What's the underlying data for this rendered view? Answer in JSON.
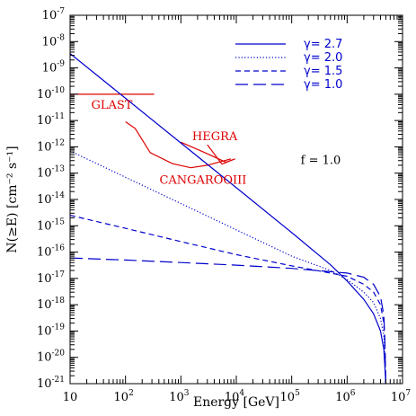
{
  "chart_data": {
    "type": "line",
    "x_scale": "log",
    "y_scale": "log",
    "xlim": [
      10,
      10000000
    ],
    "ylim": [
      1e-21,
      1e-07
    ],
    "xlabel": "Energy [GeV]",
    "ylabel": "N(≥E) [cm⁻² s⁻¹]",
    "x_ticks": [
      {
        "value": 10,
        "base": "10",
        "exp": ""
      },
      {
        "value": 100,
        "base": "10",
        "exp": "2"
      },
      {
        "value": 1000,
        "base": "10",
        "exp": "3"
      },
      {
        "value": 10000,
        "base": "10",
        "exp": "4"
      },
      {
        "value": 100000,
        "base": "10",
        "exp": "5"
      },
      {
        "value": 1000000,
        "base": "10",
        "exp": "6"
      },
      {
        "value": 10000000,
        "base": "10",
        "exp": "7"
      }
    ],
    "y_ticks": [
      {
        "value": 1e-07,
        "base": "10",
        "exp": "-7"
      },
      {
        "value": 1e-08,
        "base": "10",
        "exp": "-8"
      },
      {
        "value": 1e-09,
        "base": "10",
        "exp": "-9"
      },
      {
        "value": 1e-10,
        "base": "10",
        "exp": "-10"
      },
      {
        "value": 1e-11,
        "base": "10",
        "exp": "-11"
      },
      {
        "value": 1e-12,
        "base": "10",
        "exp": "-12"
      },
      {
        "value": 1e-13,
        "base": "10",
        "exp": "-13"
      },
      {
        "value": 1e-14,
        "base": "10",
        "exp": "-14"
      },
      {
        "value": 1e-15,
        "base": "10",
        "exp": "-15"
      },
      {
        "value": 1e-16,
        "base": "10",
        "exp": "-16"
      },
      {
        "value": 1e-17,
        "base": "10",
        "exp": "-17"
      },
      {
        "value": 1e-18,
        "base": "10",
        "exp": "-18"
      },
      {
        "value": 1e-19,
        "base": "10",
        "exp": "-19"
      },
      {
        "value": 1e-20,
        "base": "10",
        "exp": "-20"
      },
      {
        "value": 1e-21,
        "base": "10",
        "exp": "-21"
      }
    ],
    "series": [
      {
        "name": "γ= 2.7",
        "color": "#0000cc",
        "dash": "solid",
        "x": [
          10,
          100,
          1000,
          10000,
          100000,
          500000,
          1000000,
          2000000,
          3000000,
          4000000,
          4600000,
          4800000,
          4900000,
          5000000
        ],
        "y": [
          3.5e-09,
          7e-11,
          1.4e-12,
          2.8e-14,
          5.5e-16,
          3.3e-17,
          8e-18,
          1.6e-18,
          4.5e-19,
          1e-19,
          2e-20,
          5e-21,
          2e-21,
          1e-21
        ]
      },
      {
        "name": "γ= 2.0",
        "color": "#0000cc",
        "dash": "dotted",
        "x": [
          10,
          100,
          1000,
          10000,
          100000,
          500000,
          1000000,
          2000000,
          3000000,
          4000000,
          4600000,
          4800000,
          4900000,
          5000000
        ],
        "y": [
          7e-13,
          7e-14,
          7e-15,
          7e-16,
          7e-17,
          2e-17,
          9e-18,
          3e-18,
          1.2e-18,
          3e-19,
          7e-20,
          1e-20,
          3e-21,
          1e-21
        ]
      },
      {
        "name": "γ= 1.5",
        "color": "#0000cc",
        "dash": "short-dash",
        "x": [
          10,
          100,
          1000,
          10000,
          100000,
          500000,
          1000000,
          2000000,
          3000000,
          4000000,
          4600000,
          4800000,
          4900000,
          5000000
        ],
        "y": [
          2.5e-15,
          8e-16,
          2.5e-16,
          8e-17,
          3e-17,
          1.6e-17,
          1.2e-17,
          6e-18,
          3e-18,
          1e-18,
          2e-19,
          3e-20,
          5e-21,
          1e-21
        ]
      },
      {
        "name": "γ= 1.0",
        "color": "#0000cc",
        "dash": "long-dash",
        "x": [
          10,
          100,
          1000,
          10000,
          100000,
          500000,
          1000000,
          2000000,
          3000000,
          4000000,
          4600000,
          4800000,
          4900000,
          5000000
        ],
        "y": [
          6e-17,
          5e-17,
          4e-17,
          3.2e-17,
          2.4e-17,
          1.8e-17,
          1.6e-17,
          1.1e-17,
          6e-18,
          2e-18,
          4e-19,
          5e-20,
          6e-21,
          1e-21
        ]
      }
    ],
    "sensitivity": [
      {
        "name": "GLAST",
        "color": "#dd0000",
        "x": [
          10,
          330
        ],
        "y": [
          1e-10,
          1e-10
        ],
        "label_at": [
          24,
          2.8e-11
        ]
      },
      {
        "name": "HEGRA",
        "color": "#dd0000",
        "x": [
          1000,
          2500,
          6500,
          9500,
          5500,
          3000
        ],
        "y": [
          1.5e-12,
          6.5e-13,
          2.6e-13,
          3.5e-13,
          2.2e-13,
          1.2e-12
        ],
        "label_at": [
          1600,
          1.8e-12
        ]
      },
      {
        "name": "CANGAROOIII",
        "color": "#dd0000",
        "x": [
          100,
          150,
          280,
          700,
          1500,
          3000,
          8000
        ],
        "y": [
          9e-12,
          5e-12,
          6e-13,
          2.3e-13,
          1.6e-13,
          2e-13,
          3.5e-13
        ],
        "label_at": [
          410,
          4e-14
        ]
      }
    ],
    "annotation": "f  =  1.0",
    "legend_position": "top-right"
  }
}
